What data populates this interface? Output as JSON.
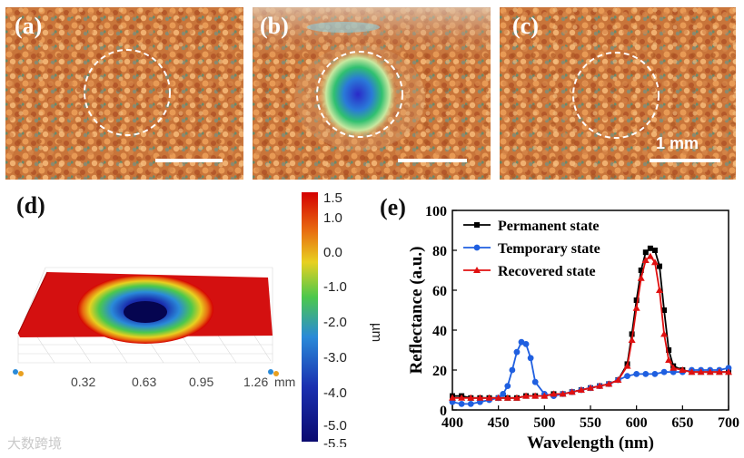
{
  "panels": {
    "a": {
      "label": "(a)"
    },
    "b": {
      "label": "(b)"
    },
    "c": {
      "label": "(c)",
      "scale_label": "1 mm"
    },
    "d": {
      "label": "(d)"
    },
    "e": {
      "label": "(e)"
    }
  },
  "colorbar": {
    "ticks": [
      "1.5",
      "1.0",
      "0.0",
      "-1.0",
      "-2.0",
      "-3.0",
      "-4.0",
      "-5.0",
      "-5.5"
    ],
    "unit": "µm",
    "colors": [
      "#d40000",
      "#e86a10",
      "#e8d020",
      "#4cc84c",
      "#2a8ad8",
      "#1a30b0",
      "#0a0a70"
    ]
  },
  "surface_axis": {
    "ticks": [
      "0.32",
      "0.63",
      "0.95",
      "1.26"
    ],
    "unit": "mm"
  },
  "watermark": {
    "text": "大数跨境"
  },
  "chart_data": {
    "type": "line",
    "xlabel": "Wavelength (nm)",
    "ylabel": "Reflectance (a.u.)",
    "xlim": [
      400,
      700
    ],
    "ylim": [
      0,
      100
    ],
    "x_ticks": [
      "400",
      "450",
      "500",
      "550",
      "600",
      "650",
      "700"
    ],
    "y_ticks": [
      "0",
      "20",
      "40",
      "60",
      "80",
      "100"
    ],
    "legend_position": "top-left",
    "series": [
      {
        "name": "Permanent state",
        "color": "#000000",
        "marker": "square",
        "x": [
          400,
          410,
          420,
          430,
          440,
          450,
          460,
          470,
          480,
          490,
          500,
          510,
          520,
          530,
          540,
          550,
          560,
          570,
          580,
          590,
          595,
          600,
          605,
          610,
          615,
          620,
          625,
          630,
          635,
          640,
          650,
          660,
          670,
          680,
          690,
          700
        ],
        "y": [
          7,
          7,
          6,
          6,
          6,
          6,
          6,
          6,
          7,
          7,
          7,
          8,
          8,
          9,
          10,
          11,
          12,
          13,
          15,
          23,
          38,
          55,
          70,
          79,
          81,
          80,
          72,
          50,
          30,
          22,
          20,
          19,
          19,
          19,
          19,
          19
        ]
      },
      {
        "name": "Temporary state",
        "color": "#1f5fe0",
        "marker": "circle",
        "x": [
          400,
          410,
          420,
          430,
          440,
          450,
          455,
          460,
          465,
          470,
          475,
          480,
          485,
          490,
          500,
          510,
          520,
          530,
          540,
          550,
          560,
          570,
          580,
          590,
          600,
          610,
          620,
          630,
          640,
          650,
          660,
          670,
          680,
          690,
          700
        ],
        "y": [
          4,
          3,
          3,
          4,
          5,
          6,
          8,
          12,
          20,
          29,
          34,
          33,
          26,
          14,
          8,
          7,
          8,
          9,
          10,
          11,
          12,
          13,
          15,
          17,
          18,
          18,
          18,
          19,
          19,
          19,
          20,
          20,
          20,
          20,
          21
        ]
      },
      {
        "name": "Recovered state",
        "color": "#e01010",
        "marker": "triangle",
        "x": [
          400,
          410,
          420,
          430,
          440,
          450,
          460,
          470,
          480,
          490,
          500,
          510,
          520,
          530,
          540,
          550,
          560,
          570,
          580,
          590,
          595,
          600,
          605,
          610,
          615,
          620,
          625,
          630,
          635,
          640,
          650,
          660,
          670,
          680,
          690,
          700
        ],
        "y": [
          6,
          6,
          6,
          6,
          6,
          6,
          6,
          6,
          7,
          7,
          7,
          8,
          8,
          9,
          10,
          11,
          12,
          13,
          15,
          22,
          35,
          51,
          66,
          75,
          77,
          74,
          60,
          38,
          25,
          21,
          20,
          19,
          19,
          19,
          19,
          19
        ]
      }
    ]
  }
}
